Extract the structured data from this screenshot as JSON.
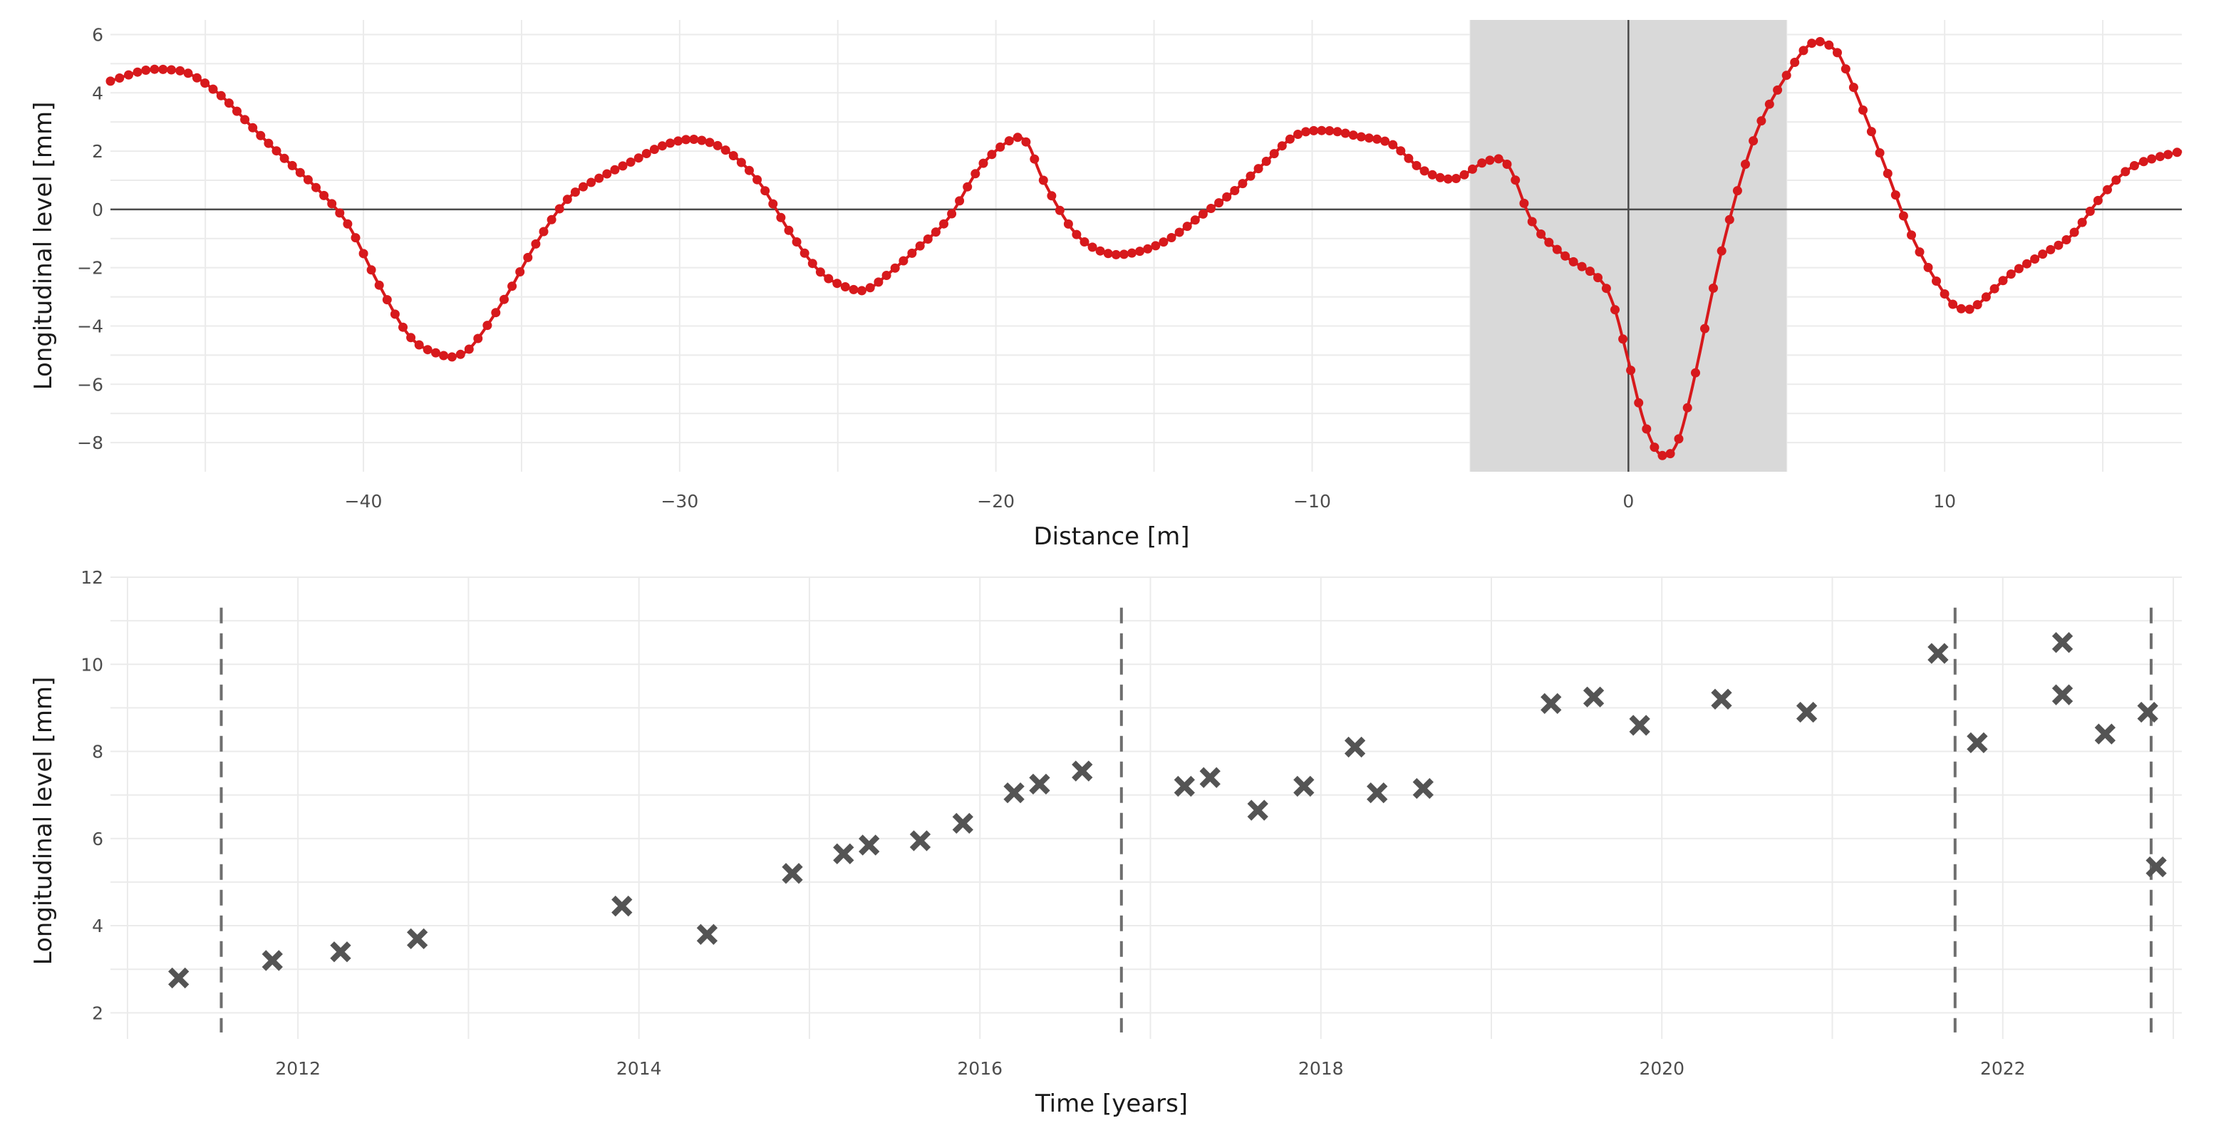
{
  "chart_data": [
    {
      "type": "line",
      "xlabel": "Distance [m]",
      "ylabel": "Longitudinal level [mm]",
      "xlim": [
        -48,
        17.5
      ],
      "ylim": [
        -9,
        6.5
      ],
      "x_ticks": [
        -40,
        -30,
        -20,
        -10,
        0,
        10
      ],
      "x_tick_labels": [
        "−40",
        "−30",
        "−20",
        "−10",
        "0",
        "10"
      ],
      "y_ticks": [
        -8,
        -6,
        -4,
        -2,
        0,
        2,
        4,
        6
      ],
      "y_tick_labels": [
        "−8",
        "−6",
        "−4",
        "−2",
        "0",
        "2",
        "4",
        "6"
      ],
      "highlight_x_range": [
        -5,
        5
      ],
      "reference_lines": {
        "x": 0,
        "y": 0
      },
      "grid": true,
      "line_color": "#d7191c",
      "highlight_color": "#d9d9d9",
      "x": [
        -48,
        -47,
        -46.3,
        -45.5,
        -44.5,
        -43.5,
        -42.5,
        -41.5,
        -40.5,
        -39.5,
        -38.5,
        -37.5,
        -37,
        -36.5,
        -35.5,
        -34.5,
        -33.5,
        -32.5,
        -31.5,
        -30.5,
        -29.5,
        -28.5,
        -27.5,
        -26.5,
        -25.5,
        -24.5,
        -24,
        -23.5,
        -22.5,
        -21.5,
        -20.5,
        -19.5,
        -19,
        -18.5,
        -17.5,
        -16.5,
        -15.5,
        -14.5,
        -13.5,
        -12.5,
        -11.5,
        -10.5,
        -9.5,
        -8.5,
        -7.5,
        -6.5,
        -5.5,
        -4.5,
        -3.8,
        -3,
        -2,
        -1,
        -0.5,
        0,
        0.5,
        1,
        1.5,
        2,
        3,
        4,
        5,
        5.8,
        6.5,
        7,
        8,
        9,
        10,
        10.5,
        11,
        12,
        13,
        14,
        15,
        16,
        17.5
      ],
      "y": [
        4.4,
        4.75,
        4.8,
        4.65,
        3.9,
        2.8,
        1.75,
        0.75,
        -0.5,
        -2.6,
        -4.4,
        -5.0,
        -5.0,
        -4.6,
        -3.0,
        -1.1,
        0.4,
        1.1,
        1.65,
        2.2,
        2.4,
        2.0,
        0.95,
        -0.8,
        -2.2,
        -2.75,
        -2.7,
        -2.3,
        -1.35,
        -0.3,
        1.45,
        2.4,
        2.25,
        1.0,
        -0.8,
        -1.5,
        -1.45,
        -1.0,
        -0.2,
        0.6,
        1.6,
        2.55,
        2.7,
        2.5,
        2.25,
        1.35,
        1.05,
        1.65,
        1.5,
        -0.5,
        -1.6,
        -2.3,
        -3.2,
        -5.2,
        -7.3,
        -8.4,
        -8.1,
        -6.2,
        -1.2,
        2.5,
        4.6,
        5.7,
        5.5,
        4.5,
        1.8,
        -1.0,
        -2.9,
        -3.4,
        -3.3,
        -2.3,
        -1.6,
        -0.9,
        0.5,
        1.5,
        2.0
      ]
    },
    {
      "type": "scatter",
      "xlabel": "Time [years]",
      "ylabel": "Longitudinal level [mm]",
      "xlim": [
        2010.9,
        2023.05
      ],
      "ylim": [
        1.4,
        12
      ],
      "x_ticks": [
        2012,
        2014,
        2016,
        2018,
        2020,
        2022
      ],
      "x_tick_labels": [
        "2012",
        "2014",
        "2016",
        "2018",
        "2020",
        "2022"
      ],
      "y_ticks": [
        2,
        4,
        6,
        8,
        10,
        12
      ],
      "y_tick_labels": [
        "2",
        "4",
        "6",
        "8",
        "10",
        "12"
      ],
      "vertical_dashed_lines": [
        2011.55,
        2016.83,
        2021.72,
        2022.87
      ],
      "grid": true,
      "marker_color": "#545454",
      "x": [
        2011.3,
        2011.85,
        2012.25,
        2012.7,
        2013.9,
        2014.4,
        2014.9,
        2015.2,
        2015.35,
        2015.65,
        2015.9,
        2016.2,
        2016.35,
        2016.6,
        2017.2,
        2017.35,
        2017.63,
        2017.9,
        2018.2,
        2018.33,
        2018.6,
        2019.35,
        2019.6,
        2019.87,
        2020.35,
        2020.85,
        2021.62,
        2021.85,
        2022.35,
        2022.35,
        2022.6,
        2022.85,
        2022.9
      ],
      "y": [
        2.8,
        3.2,
        3.4,
        3.7,
        4.45,
        3.8,
        5.2,
        5.65,
        5.85,
        5.95,
        6.35,
        7.05,
        7.25,
        7.55,
        7.2,
        7.4,
        6.65,
        7.2,
        8.1,
        7.05,
        7.15,
        9.1,
        9.25,
        8.6,
        9.2,
        8.9,
        10.25,
        8.2,
        10.5,
        9.3,
        8.4,
        8.9,
        5.35
      ]
    }
  ]
}
